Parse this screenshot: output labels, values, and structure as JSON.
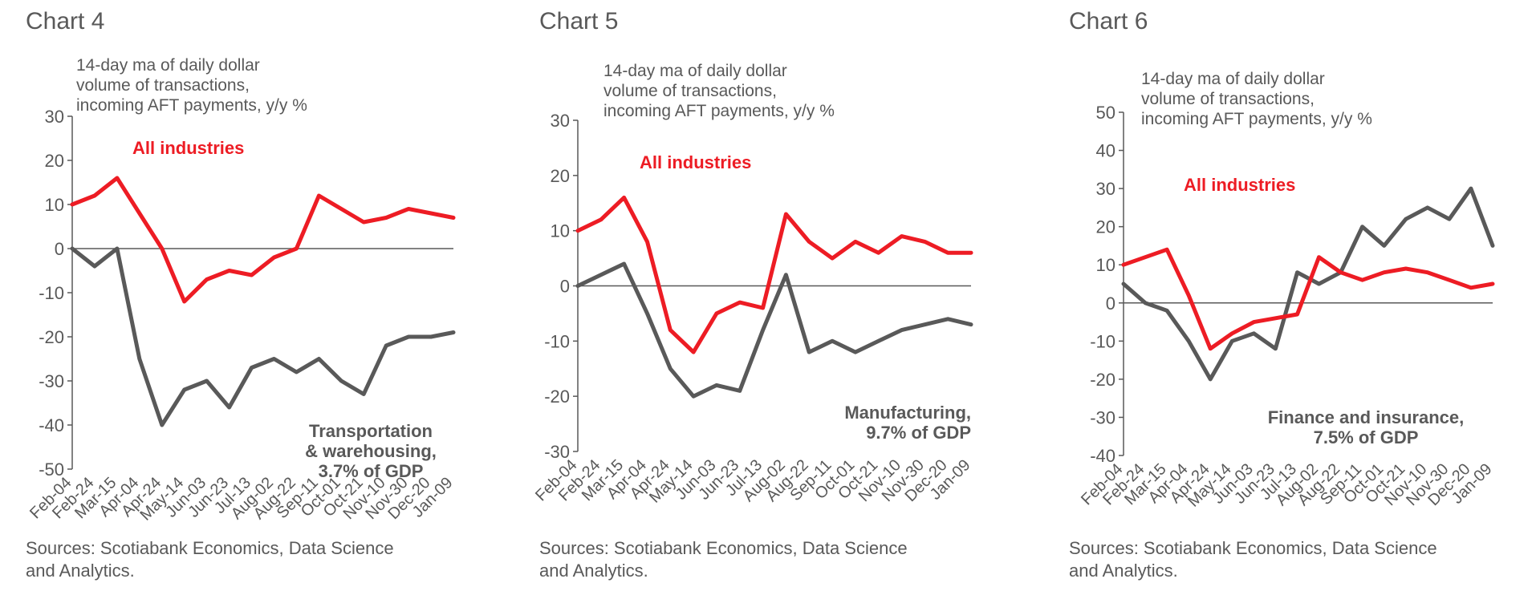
{
  "colors": {
    "all_industries": "#ED1C24",
    "sector": "#595959",
    "axis": "#595959"
  },
  "chart_data": [
    {
      "type": "line",
      "title": "Chart 4",
      "ylabel": "14-day ma of daily dollar volume of transactions, incoming AFT payments, y/y %",
      "ylabel_lines": [
        "14-day ma of daily dollar",
        "volume of transactions,",
        "incoming AFT payments, y/y %"
      ],
      "ylim": [
        -50,
        30
      ],
      "yticks": [
        30,
        20,
        10,
        0,
        -10,
        -20,
        -30,
        -40,
        -50
      ],
      "categories": [
        "Feb-04",
        "Feb-24",
        "Mar-15",
        "Apr-04",
        "Apr-24",
        "May-14",
        "Jun-03",
        "Jun-23",
        "Jul-13",
        "Aug-02",
        "Aug-22",
        "Sep-11",
        "Oct-01",
        "Oct-21",
        "Nov-10",
        "Nov-30",
        "Dec-20",
        "Jan-09"
      ],
      "series": [
        {
          "name": "All industries",
          "label_lines": [
            "All industries"
          ],
          "values": [
            10,
            12,
            16,
            8,
            0,
            -12,
            -7,
            -5,
            -6,
            -2,
            0,
            12,
            9,
            6,
            7,
            9,
            8,
            7
          ]
        },
        {
          "name": "Transportation & warehousing, 3.7% of GDP",
          "label_lines": [
            "Transportation",
            "& warehousing,",
            "3.7% of GDP"
          ],
          "values": [
            0,
            -4,
            0,
            -25,
            -40,
            -32,
            -30,
            -36,
            -27,
            -25,
            -28,
            -25,
            -30,
            -33,
            -22,
            -20,
            -20,
            -19
          ]
        }
      ],
      "sources": [
        "Sources: Scotiabank Economics, Data Science",
        "and Analytics."
      ]
    },
    {
      "type": "line",
      "title": "Chart 5",
      "ylabel": "14-day ma of daily dollar volume of transactions, incoming AFT payments, y/y %",
      "ylabel_lines": [
        "14-day ma of daily dollar",
        "volume of transactions,",
        "incoming AFT payments, y/y %"
      ],
      "ylim": [
        -30,
        30
      ],
      "yticks": [
        30,
        20,
        10,
        0,
        -10,
        -20,
        -30
      ],
      "categories": [
        "Feb-04",
        "Feb-24",
        "Mar-15",
        "Apr-04",
        "Apr-24",
        "May-14",
        "Jun-03",
        "Jun-23",
        "Jul-13",
        "Aug-02",
        "Aug-22",
        "Sep-11",
        "Oct-01",
        "Oct-21",
        "Nov-10",
        "Nov-30",
        "Dec-20",
        "Jan-09"
      ],
      "series": [
        {
          "name": "All industries",
          "label_lines": [
            "All industries"
          ],
          "values": [
            10,
            12,
            16,
            8,
            -8,
            -12,
            -5,
            -3,
            -4,
            13,
            8,
            5,
            8,
            6,
            9,
            8,
            6,
            6
          ]
        },
        {
          "name": "Manufacturing, 9.7% of GDP",
          "label_lines": [
            "Manufacturing,",
            "9.7% of GDP"
          ],
          "values": [
            0,
            2,
            4,
            -5,
            -15,
            -20,
            -18,
            -19,
            -8,
            2,
            -12,
            -10,
            -12,
            -10,
            -8,
            -7,
            -6,
            -7
          ]
        }
      ],
      "sources": [
        "Sources: Scotiabank Economics, Data Science",
        "and Analytics."
      ]
    },
    {
      "type": "line",
      "title": "Chart 6",
      "ylabel": "14-day ma of daily dollar volume of transactions, incoming AFT payments, y/y %",
      "ylabel_lines": [
        "14-day ma of daily dollar",
        "volume of transactions,",
        "incoming AFT payments, y/y %"
      ],
      "ylim": [
        -40,
        50
      ],
      "yticks": [
        50,
        40,
        30,
        20,
        10,
        0,
        -10,
        -20,
        -30,
        -40
      ],
      "categories": [
        "Feb-04",
        "Feb-24",
        "Mar-15",
        "Apr-04",
        "Apr-24",
        "May-14",
        "Jun-03",
        "Jun-23",
        "Jul-13",
        "Aug-02",
        "Aug-22",
        "Sep-11",
        "Oct-01",
        "Oct-21",
        "Nov-10",
        "Nov-30",
        "Dec-20",
        "Jan-09"
      ],
      "series": [
        {
          "name": "All industries",
          "label_lines": [
            "All industries"
          ],
          "values": [
            10,
            12,
            14,
            2,
            -12,
            -8,
            -5,
            -4,
            -3,
            12,
            8,
            6,
            8,
            9,
            8,
            6,
            4,
            5
          ]
        },
        {
          "name": "Finance and insurance, 7.5% of GDP",
          "label_lines": [
            "Finance and insurance,",
            "7.5% of GDP"
          ],
          "values": [
            5,
            0,
            -2,
            -10,
            -20,
            -10,
            -8,
            -12,
            8,
            5,
            8,
            20,
            15,
            22,
            25,
            22,
            30,
            15
          ]
        }
      ],
      "sources": [
        "Sources: Scotiabank Economics, Data Science",
        "and Analytics."
      ]
    }
  ]
}
